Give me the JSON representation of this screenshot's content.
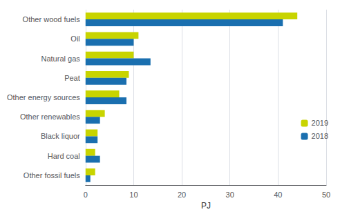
{
  "chart_data": {
    "type": "bar",
    "orientation": "horizontal",
    "categories": [
      "Other fossil fuels",
      "Hard coal",
      "Black liquor",
      "Other renewables",
      "Other energy sources",
      "Peat",
      "Natural gas",
      "Oil",
      "Other wood fuels"
    ],
    "series": [
      {
        "name": "2019",
        "color": "#c8d400",
        "values": [
          2.0,
          2.0,
          2.5,
          4.0,
          7.0,
          9.0,
          10.0,
          11.0,
          44.0
        ]
      },
      {
        "name": "2018",
        "color": "#1a6faf",
        "values": [
          1.0,
          3.0,
          2.5,
          3.0,
          8.5,
          8.5,
          13.5,
          10.0,
          41.0
        ]
      }
    ],
    "xlabel": "PJ",
    "xlim": [
      0,
      50
    ],
    "xticks": [
      0,
      10,
      20,
      30,
      40,
      50
    ],
    "grid": true,
    "legend": "right"
  }
}
